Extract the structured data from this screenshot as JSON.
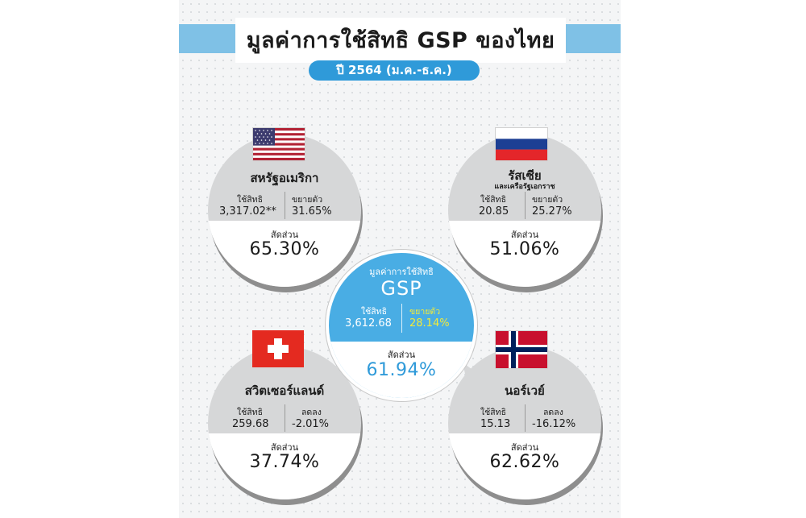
{
  "header": {
    "title": "มูลค่าการใช้สิทธิ GSP ของไทย",
    "subtitle": "ปี 2564 (ม.ค.-ธ.ค.)"
  },
  "center": {
    "title": "มูลค่าการใช้สิทธิ",
    "name": "GSP",
    "used_label": "ใช้สิทธิ",
    "used_value": "3,612.68",
    "change_label": "ขยายตัว",
    "change_value": "28.14%",
    "share_label": "สัดส่วน",
    "share_value": "61.94%"
  },
  "cards": {
    "usa": {
      "name": "สหรัฐอเมริกา",
      "used_label": "ใช้สิทธิ",
      "used_value": "3,317.02**",
      "change_label": "ขยายตัว",
      "change_value": "31.65%",
      "share_label": "สัดส่วน",
      "share_value": "65.30%"
    },
    "russia": {
      "name": "รัสเซีย",
      "name_sub": "และเครือรัฐเอกราช",
      "used_label": "ใช้สิทธิ",
      "used_value": "20.85",
      "change_label": "ขยายตัว",
      "change_value": "25.27%",
      "share_label": "สัดส่วน",
      "share_value": "51.06%"
    },
    "switzerland": {
      "name": "สวิตเซอร์แลนด์",
      "used_label": "ใช้สิทธิ",
      "used_value": "259.68",
      "change_label": "ลดลง",
      "change_value": "-2.01%",
      "share_label": "สัดส่วน",
      "share_value": "37.74%"
    },
    "norway": {
      "name": "นอร์เวย์",
      "used_label": "ใช้สิทธิ",
      "used_value": "15.13",
      "change_label": "ลดลง",
      "change_value": "-16.12%",
      "share_label": "สัดส่วน",
      "share_value": "62.62%"
    }
  },
  "colors": {
    "accent_blue": "#2f9ad9",
    "banner_blue": "#7fc1e6",
    "center_fill": "#49ade4",
    "highlight_yellow": "#f2ea3a",
    "card_gray": "#d6d7d8"
  },
  "icons": [
    "usa-flag-icon",
    "russia-flag-icon",
    "switzerland-flag-icon",
    "norway-flag-icon"
  ]
}
